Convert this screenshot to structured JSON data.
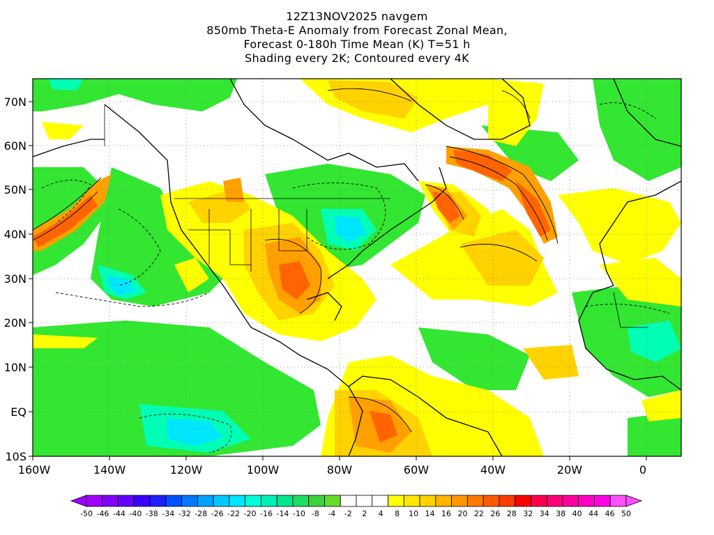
{
  "title": {
    "line1": "12Z13NOV2025 navgem",
    "line2": "850mb Theta-E Anomaly from Forecast Zonal Mean,",
    "line3": "Forecast 0-180h Time Mean (K) T=51 h",
    "line4": "Shading every 2K; Contoured every 4K"
  },
  "axes": {
    "lat_labels": [
      "70N",
      "60N",
      "50N",
      "40N",
      "30N",
      "20N",
      "10N",
      "EQ",
      "10S"
    ],
    "lon_labels": [
      "160W",
      "140W",
      "120W",
      "100W",
      "80W",
      "60W",
      "40W",
      "20W",
      "0"
    ]
  },
  "colorbar": {
    "labels": [
      "-50",
      "-46",
      "-44",
      "-40",
      "-38",
      "-34",
      "-32",
      "-28",
      "-26",
      "-22",
      "-20",
      "-16",
      "-14",
      "-10",
      "-8",
      "-4",
      "-2",
      "2",
      "4",
      "8",
      "10",
      "14",
      "16",
      "20",
      "22",
      "26",
      "28",
      "32",
      "34",
      "38",
      "40",
      "44",
      "46",
      "50"
    ],
    "colors": [
      "#a000ff",
      "#8200ff",
      "#6400ff",
      "#3c00ff",
      "#1e1eff",
      "#0050ff",
      "#0078ff",
      "#00a0ff",
      "#00c8ff",
      "#00e6ff",
      "#00ffd8",
      "#00f0b4",
      "#00e68c",
      "#1edc64",
      "#3cd23c",
      "#64dc28",
      "#ffffff",
      "#ffffff",
      "#ffffff",
      "#ffff00",
      "#ffe600",
      "#ffd200",
      "#ffb400",
      "#ff9600",
      "#ff7800",
      "#ff5a00",
      "#ff3c00",
      "#ff0000",
      "#ff0050",
      "#ff0078",
      "#ff00a0",
      "#ff00c8",
      "#ff00e6",
      "#ff50ff"
    ]
  },
  "legend_colors": {
    "cold_strong": "#00e6ff",
    "cold_mid": "#00ffb4",
    "cool": "#32e632",
    "neutral": "#ffffff",
    "warm": "#ffff00",
    "warm_mid": "#ffd200",
    "warmer": "#ffa000",
    "hot": "#ff6400",
    "very_hot": "#ff2800"
  }
}
